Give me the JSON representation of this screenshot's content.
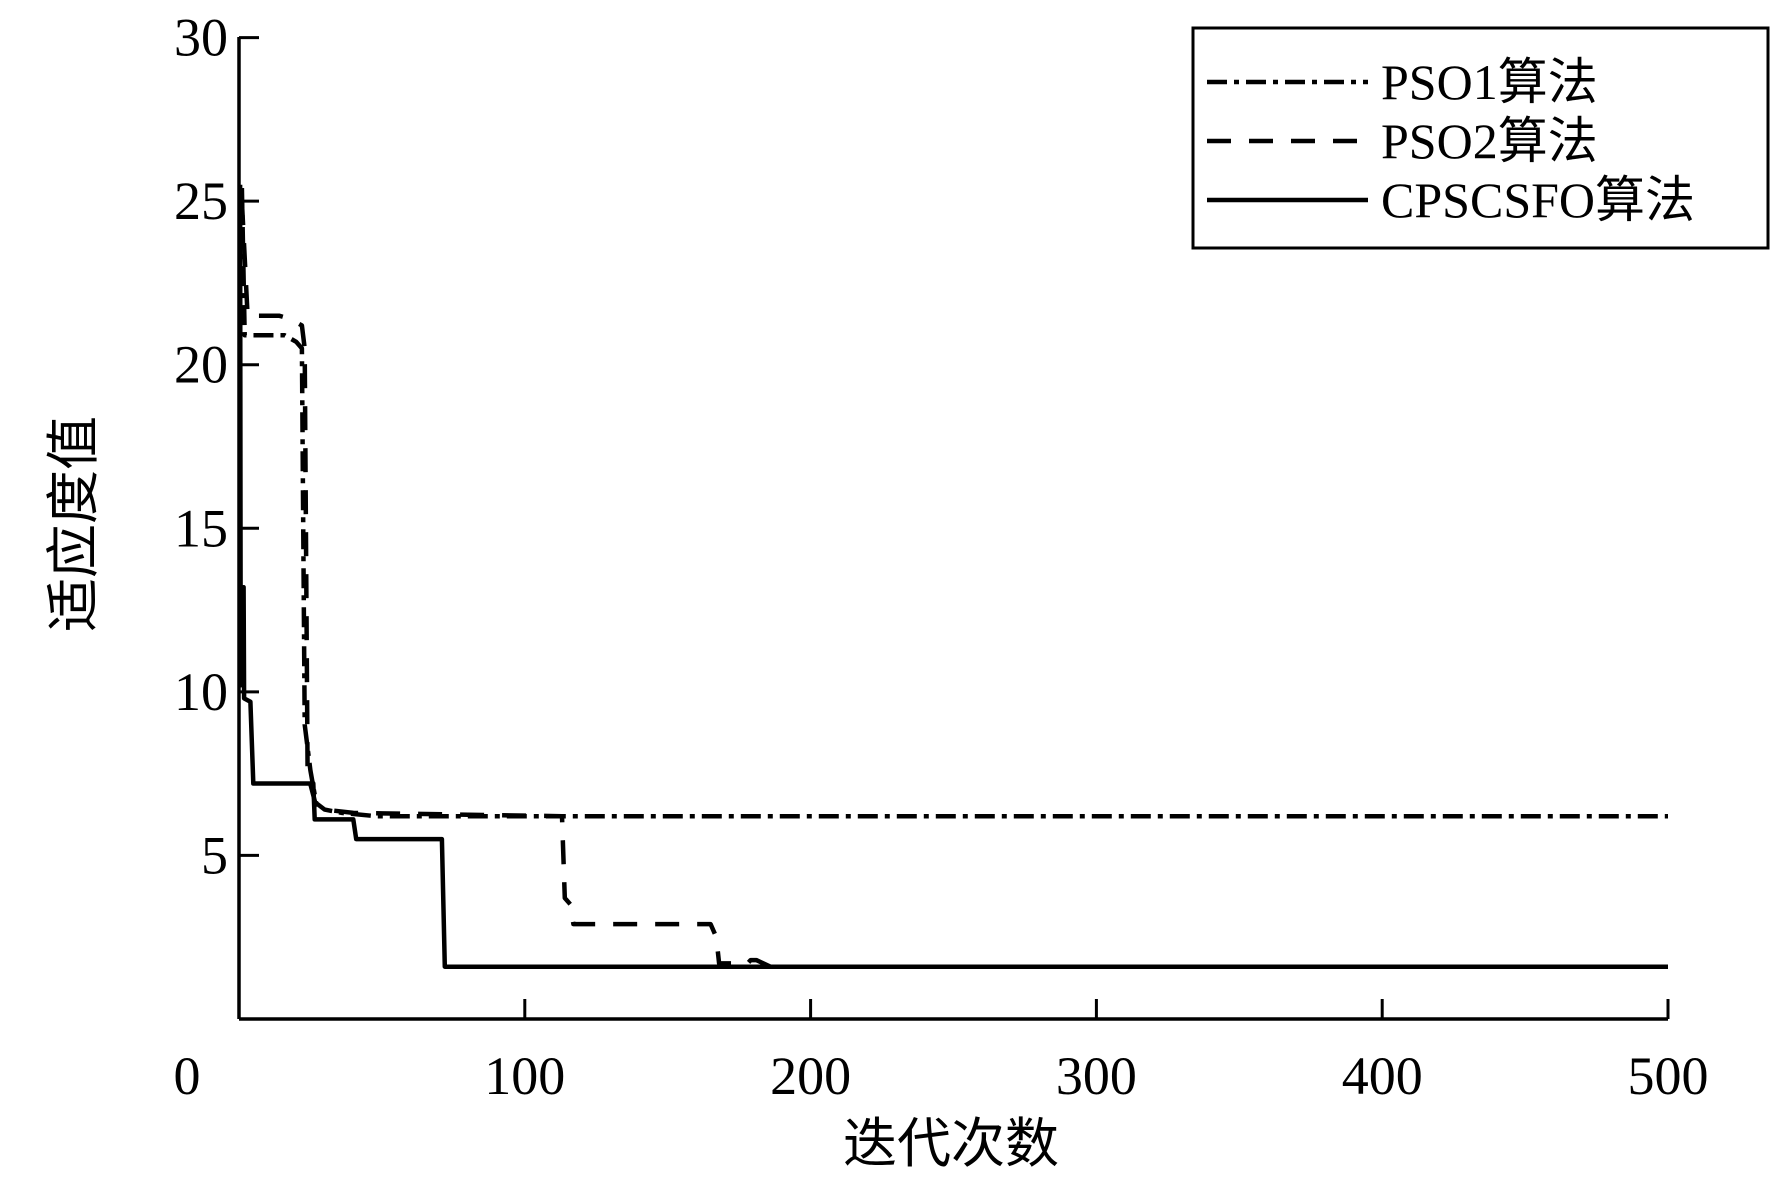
{
  "chart_data": {
    "type": "line",
    "title": "",
    "xlabel": "迭代次数",
    "ylabel": "适应度值",
    "xlim": [
      0,
      500
    ],
    "ylim": [
      0,
      30
    ],
    "xticks": [
      "0",
      "100",
      "200",
      "300",
      "400",
      "500"
    ],
    "yticks": [
      "5",
      "10",
      "15",
      "20",
      "25",
      "30"
    ],
    "grid": false,
    "legend_placement": "top-right",
    "series": [
      {
        "name": "PSO1算法",
        "line_style": "dash-dot",
        "color": "#000000",
        "x": [
          1,
          2,
          16,
          20,
          22,
          23,
          25,
          27,
          30,
          36,
          48,
          500
        ],
        "y": [
          25.4,
          20.9,
          20.9,
          20.7,
          20.5,
          9.0,
          7.6,
          6.6,
          6.4,
          6.3,
          6.2,
          6.2
        ]
      },
      {
        "name": "PSO2算法",
        "line_style": "dashed",
        "color": "#000000",
        "x": [
          1,
          3,
          14,
          18,
          22,
          23,
          24,
          27,
          30,
          40,
          113,
          114,
          116,
          117,
          165,
          167,
          168,
          178,
          179,
          181,
          186,
          500
        ],
        "y": [
          25.0,
          21.5,
          21.5,
          21.4,
          21.2,
          20.5,
          7.5,
          6.5,
          6.4,
          6.3,
          6.2,
          3.7,
          3.5,
          2.9,
          2.9,
          2.5,
          1.7,
          1.7,
          1.8,
          1.8,
          1.6,
          1.6
        ]
      },
      {
        "name": "CPSCSFO算法",
        "line_style": "solid",
        "color": "#000000",
        "x": [
          0.4,
          0.6,
          1.6,
          1.8,
          4,
          5,
          26,
          26.5,
          40,
          41,
          71,
          72,
          500
        ],
        "y": [
          25.5,
          10.2,
          13.2,
          9.8,
          9.7,
          7.2,
          7.2,
          6.1,
          6.1,
          5.5,
          5.5,
          1.6,
          1.6
        ]
      }
    ]
  }
}
